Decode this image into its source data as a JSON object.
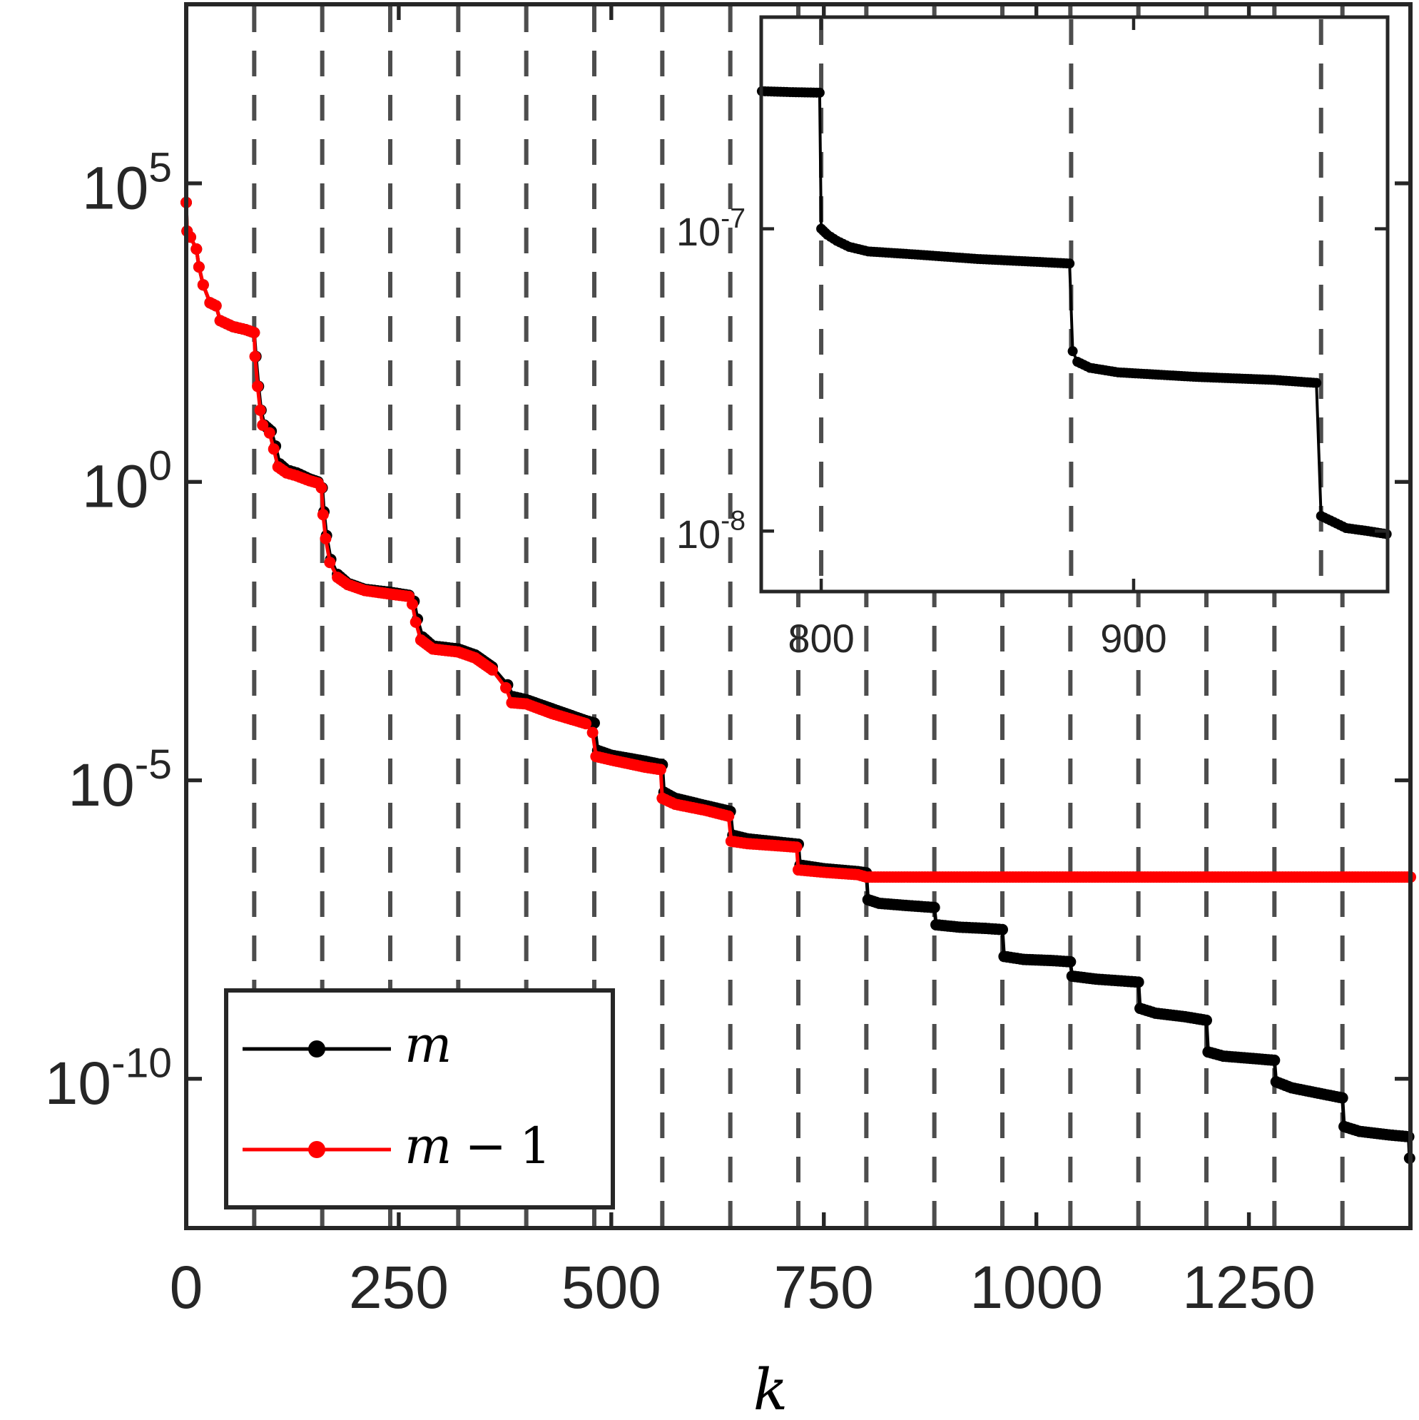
{
  "chart_data": [
    {
      "id": "main",
      "type": "line",
      "title": "",
      "xlabel": "k",
      "ylabel": "",
      "yscale": "log",
      "xlim": [
        0,
        1440
      ],
      "ylim_log10": [
        -12.5,
        8.0
      ],
      "xticks": [
        0,
        250,
        500,
        750,
        1000,
        1250
      ],
      "xtick_labels": [
        "0",
        "250",
        "500",
        "750",
        "1000",
        "1250"
      ],
      "yticks_log10": [
        5,
        0,
        -5,
        -10
      ],
      "ytick_labels": [
        {
          "base": "10",
          "exp": "5"
        },
        {
          "base": "10",
          "exp": "0"
        },
        {
          "base": "10",
          "exp": "-5"
        },
        {
          "base": "10",
          "exp": "-10"
        }
      ],
      "grid": false,
      "vertical_dashed_lines_k": [
        0,
        80,
        160,
        240,
        320,
        400,
        480,
        560,
        640,
        720,
        800,
        880,
        960,
        1040,
        1120,
        1200,
        1280,
        1360
      ],
      "dashed_line_color": "#4d4d4d",
      "legend": {
        "position": "lower left",
        "entries": [
          {
            "label": "m",
            "color": "#000000"
          },
          {
            "label": "m − 1",
            "color": "#ff0000"
          }
        ]
      },
      "series": [
        {
          "name": "m",
          "color": "#000000",
          "marker": "dot",
          "points_log10": [
            [
              0,
              4.68
            ],
            [
              1,
              4.2
            ],
            [
              5,
              4.1
            ],
            [
              12,
              3.9
            ],
            [
              15,
              3.6
            ],
            [
              20,
              3.3
            ],
            [
              28,
              3.0
            ],
            [
              35,
              2.95
            ],
            [
              40,
              2.7
            ],
            [
              55,
              2.6
            ],
            [
              70,
              2.55
            ],
            [
              80,
              2.5
            ],
            [
              82,
              2.1
            ],
            [
              85,
              1.6
            ],
            [
              88,
              1.2
            ],
            [
              92,
              0.95
            ],
            [
              100,
              0.85
            ],
            [
              105,
              0.6
            ],
            [
              110,
              0.3
            ],
            [
              118,
              0.2
            ],
            [
              130,
              0.15
            ],
            [
              145,
              0.05
            ],
            [
              155,
              0.0
            ],
            [
              160,
              -0.1
            ],
            [
              162,
              -0.5
            ],
            [
              165,
              -0.9
            ],
            [
              170,
              -1.3
            ],
            [
              178,
              -1.55
            ],
            [
              190,
              -1.7
            ],
            [
              210,
              -1.8
            ],
            [
              240,
              -1.85
            ],
            [
              262,
              -1.9
            ],
            [
              268,
              -2.0
            ],
            [
              272,
              -2.3
            ],
            [
              278,
              -2.6
            ],
            [
              290,
              -2.75
            ],
            [
              320,
              -2.8
            ],
            [
              340,
              -2.9
            ],
            [
              360,
              -3.1
            ],
            [
              378,
              -3.4
            ],
            [
              385,
              -3.6
            ],
            [
              400,
              -3.65
            ],
            [
              430,
              -3.8
            ],
            [
              470,
              -4.0
            ],
            [
              480,
              -4.04
            ],
            [
              484,
              -4.5
            ],
            [
              500,
              -4.58
            ],
            [
              540,
              -4.68
            ],
            [
              560,
              -4.74
            ],
            [
              562,
              -5.2
            ],
            [
              575,
              -5.3
            ],
            [
              610,
              -5.42
            ],
            [
              640,
              -5.52
            ],
            [
              643,
              -5.92
            ],
            [
              660,
              -5.98
            ],
            [
              700,
              -6.04
            ],
            [
              720,
              -6.07
            ],
            [
              722,
              -6.42
            ],
            [
              750,
              -6.48
            ],
            [
              790,
              -6.53
            ],
            [
              800,
              -6.55
            ],
            [
              802,
              -7.0
            ],
            [
              815,
              -7.06
            ],
            [
              850,
              -7.1
            ],
            [
              880,
              -7.13
            ],
            [
              882,
              -7.42
            ],
            [
              910,
              -7.46
            ],
            [
              940,
              -7.48
            ],
            [
              960,
              -7.5
            ],
            [
              962,
              -7.95
            ],
            [
              985,
              -8.0
            ],
            [
              1020,
              -8.02
            ],
            [
              1040,
              -8.04
            ],
            [
              1042,
              -8.28
            ],
            [
              1070,
              -8.33
            ],
            [
              1100,
              -8.36
            ],
            [
              1120,
              -8.38
            ],
            [
              1122,
              -8.82
            ],
            [
              1140,
              -8.9
            ],
            [
              1175,
              -8.96
            ],
            [
              1200,
              -9.02
            ],
            [
              1202,
              -9.55
            ],
            [
              1220,
              -9.62
            ],
            [
              1255,
              -9.66
            ],
            [
              1280,
              -9.69
            ],
            [
              1282,
              -10.05
            ],
            [
              1300,
              -10.15
            ],
            [
              1335,
              -10.25
            ],
            [
              1360,
              -10.32
            ],
            [
              1362,
              -10.8
            ],
            [
              1380,
              -10.88
            ],
            [
              1415,
              -10.94
            ],
            [
              1438,
              -10.97
            ],
            [
              1439,
              -11.33
            ]
          ]
        },
        {
          "name": "m - 1",
          "color": "#ff0000",
          "marker": "dot",
          "points_log10": [
            [
              0,
              4.68
            ],
            [
              1,
              4.2
            ],
            [
              5,
              4.1
            ],
            [
              12,
              3.9
            ],
            [
              15,
              3.6
            ],
            [
              20,
              3.3
            ],
            [
              28,
              3.0
            ],
            [
              35,
              2.95
            ],
            [
              40,
              2.7
            ],
            [
              55,
              2.6
            ],
            [
              70,
              2.55
            ],
            [
              80,
              2.5
            ],
            [
              81,
              2.1
            ],
            [
              84,
              1.6
            ],
            [
              87,
              1.2
            ],
            [
              90,
              0.95
            ],
            [
              98,
              0.82
            ],
            [
              103,
              0.55
            ],
            [
              108,
              0.25
            ],
            [
              118,
              0.15
            ],
            [
              130,
              0.1
            ],
            [
              145,
              0.02
            ],
            [
              155,
              -0.02
            ],
            [
              159,
              -0.1
            ],
            [
              161,
              -0.55
            ],
            [
              164,
              -0.95
            ],
            [
              169,
              -1.35
            ],
            [
              178,
              -1.6
            ],
            [
              190,
              -1.72
            ],
            [
              210,
              -1.82
            ],
            [
              240,
              -1.88
            ],
            [
              262,
              -1.92
            ],
            [
              266,
              -2.05
            ],
            [
              270,
              -2.35
            ],
            [
              276,
              -2.65
            ],
            [
              290,
              -2.8
            ],
            [
              320,
              -2.85
            ],
            [
              340,
              -2.95
            ],
            [
              360,
              -3.15
            ],
            [
              376,
              -3.45
            ],
            [
              383,
              -3.7
            ],
            [
              400,
              -3.72
            ],
            [
              430,
              -3.88
            ],
            [
              470,
              -4.05
            ],
            [
              478,
              -4.2
            ],
            [
              482,
              -4.6
            ],
            [
              500,
              -4.66
            ],
            [
              540,
              -4.78
            ],
            [
              558,
              -4.82
            ],
            [
              560,
              -5.3
            ],
            [
              575,
              -5.4
            ],
            [
              610,
              -5.5
            ],
            [
              638,
              -5.6
            ],
            [
              641,
              -6.02
            ],
            [
              660,
              -6.06
            ],
            [
              700,
              -6.1
            ],
            [
              718,
              -6.12
            ],
            [
              720,
              -6.5
            ],
            [
              750,
              -6.54
            ],
            [
              790,
              -6.58
            ],
            [
              800,
              -6.62
            ],
            [
              900,
              -6.62
            ],
            [
              1000,
              -6.62
            ],
            [
              1100,
              -6.62
            ],
            [
              1200,
              -6.62
            ],
            [
              1300,
              -6.62
            ],
            [
              1440,
              -6.62
            ]
          ]
        }
      ]
    },
    {
      "id": "inset",
      "type": "line",
      "title": "",
      "xlabel": "",
      "ylabel": "",
      "yscale": "log",
      "xlim": [
        780.8,
        981.3
      ],
      "ylim_log10": [
        -8.2,
        -6.3
      ],
      "xticks": [
        800,
        900
      ],
      "xtick_labels": [
        "800",
        "900"
      ],
      "yticks_log10": [
        -7,
        -8
      ],
      "ytick_labels": [
        {
          "base": "10",
          "exp": "-7"
        },
        {
          "base": "10",
          "exp": "-8"
        }
      ],
      "grid": false,
      "vertical_dashed_lines_k": [
        800,
        880,
        960
      ],
      "series": [
        {
          "name": "m",
          "color": "#000000",
          "marker": "dot",
          "points_log10": [
            [
              781,
              -6.545
            ],
            [
              790,
              -6.548
            ],
            [
              799.5,
              -6.55
            ],
            [
              800,
              -7.0
            ],
            [
              802,
              -7.02
            ],
            [
              805,
              -7.04
            ],
            [
              809,
              -7.06
            ],
            [
              815,
              -7.075
            ],
            [
              830,
              -7.085
            ],
            [
              850,
              -7.1
            ],
            [
              870,
              -7.11
            ],
            [
              879.5,
              -7.115
            ],
            [
              880.5,
              -7.405
            ],
            [
              882,
              -7.44
            ],
            [
              886,
              -7.46
            ],
            [
              895,
              -7.475
            ],
            [
              920,
              -7.49
            ],
            [
              945,
              -7.5
            ],
            [
              958.5,
              -7.51
            ],
            [
              960,
              -7.95
            ],
            [
              964,
              -7.97
            ],
            [
              968,
              -7.99
            ],
            [
              975,
              -8.0
            ],
            [
              981,
              -8.01
            ]
          ]
        }
      ]
    }
  ]
}
